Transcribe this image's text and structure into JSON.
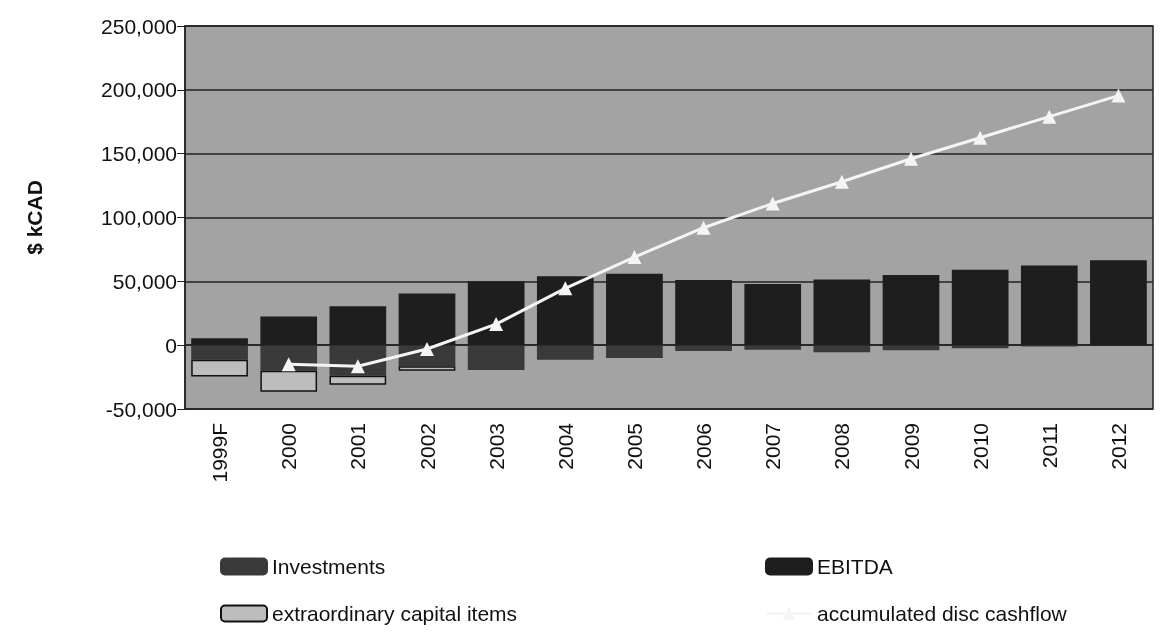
{
  "chart_data": {
    "type": "bar",
    "stacked": true,
    "ylabel": "$ kCAD",
    "categories": [
      "1999F",
      "2000",
      "2001",
      "2002",
      "2003",
      "2004",
      "2005",
      "2006",
      "2007",
      "2008",
      "2009",
      "2010",
      "2011",
      "2012"
    ],
    "series": [
      {
        "name": "Investments",
        "color": "#3a3a3a",
        "values": [
          -11500,
          -20000,
          -24000,
          -16500,
          -19500,
          -11500,
          -10000,
          -4500,
          -3500,
          -5500,
          -4000,
          -2500,
          -1000,
          null
        ]
      },
      {
        "name": "EBITDA",
        "color": "#1e1e1e",
        "values": [
          5500,
          22500,
          30500,
          40500,
          50000,
          54000,
          56000,
          51000,
          48000,
          51500,
          55000,
          59000,
          62500,
          66500
        ]
      },
      {
        "name": "extraordinary capital items",
        "color": "#bdbdbd",
        "values": [
          -13000,
          -16500,
          -7000,
          -3500,
          null,
          null,
          null,
          null,
          null,
          null,
          null,
          null,
          null,
          null
        ]
      },
      {
        "name": "accumulated disc cashflow",
        "type": "line",
        "color": "#f4f4f4",
        "values": [
          null,
          -15000,
          -16500,
          -3000,
          16500,
          44500,
          69000,
          92000,
          111000,
          128000,
          146000,
          162500,
          179000,
          195500
        ]
      }
    ],
    "ylim": [
      -50000,
      250000
    ],
    "yticks": [
      {
        "value": -50000,
        "label": "-50,000"
      },
      0,
      {
        "value": 50000,
        "label": "50,000"
      },
      {
        "value": 100000,
        "label": "100,000"
      },
      {
        "value": 150000,
        "label": "150,000"
      },
      {
        "value": 200000,
        "label": "200,000"
      },
      {
        "value": 250000,
        "label": "250,000"
      }
    ],
    "grid": "y",
    "legend": "bottom",
    "marker": "triangle"
  }
}
